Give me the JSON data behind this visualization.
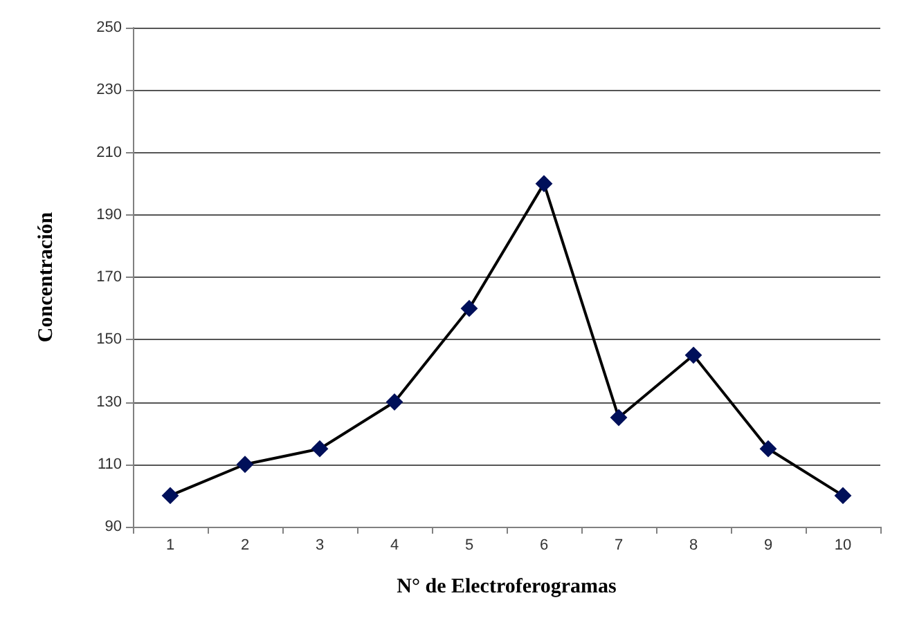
{
  "chart_data": {
    "type": "line",
    "xlabel": "N° de Electroferogramas",
    "ylabel": "Concentración",
    "categories": [
      "1",
      "2",
      "3",
      "4",
      "5",
      "6",
      "7",
      "8",
      "9",
      "10"
    ],
    "series": [
      {
        "color": "#00105a",
        "values": [
          100,
          110,
          115,
          130,
          160,
          200,
          125,
          145,
          115,
          100
        ]
      }
    ],
    "ylim": [
      90,
      250
    ],
    "yticks": [
      90,
      110,
      130,
      150,
      170,
      190,
      210,
      230,
      250
    ],
    "grid": "y",
    "marker": "diamond",
    "line_style": "solid"
  }
}
